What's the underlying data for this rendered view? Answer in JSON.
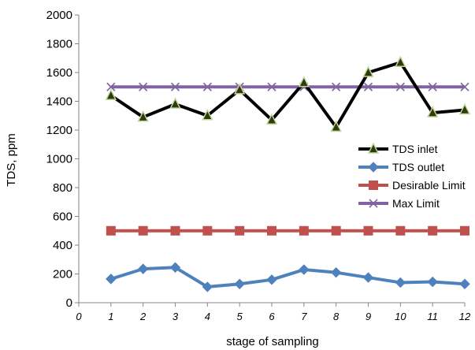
{
  "chart_data": {
    "type": "line",
    "xlabel": "stage of sampling",
    "ylabel": "TDS, ppm",
    "xlim": [
      0,
      12
    ],
    "ylim": [
      0,
      2000
    ],
    "x_ticks": [
      0,
      1,
      2,
      3,
      4,
      5,
      6,
      7,
      8,
      9,
      10,
      11,
      12
    ],
    "y_ticks": [
      0,
      200,
      400,
      600,
      800,
      1000,
      1200,
      1400,
      1600,
      1800,
      2000
    ],
    "grid": false,
    "legend_position": "right",
    "x": [
      1,
      2,
      3,
      4,
      5,
      6,
      7,
      8,
      9,
      10,
      11,
      12
    ],
    "series": [
      {
        "name": "TDS inlet",
        "color": "#000000",
        "marker": "triangle",
        "marker_fill": "#2e3b0f",
        "marker_stroke": "#c3d69b",
        "values": [
          1440,
          1290,
          1380,
          1300,
          1480,
          1270,
          1530,
          1220,
          1600,
          1670,
          1320,
          1340
        ]
      },
      {
        "name": "TDS outlet",
        "color": "#4f81bd",
        "marker": "diamond",
        "marker_fill": "#4f81bd",
        "marker_stroke": "#4f81bd",
        "values": [
          165,
          235,
          245,
          110,
          130,
          160,
          230,
          210,
          175,
          140,
          145,
          130
        ]
      },
      {
        "name": "Desirable Limit",
        "color": "#c0504d",
        "marker": "square",
        "marker_fill": "#c0504d",
        "marker_stroke": "#c0504d",
        "values": [
          500,
          500,
          500,
          500,
          500,
          500,
          500,
          500,
          500,
          500,
          500,
          500
        ]
      },
      {
        "name": "Max Limit",
        "color": "#8064a2",
        "marker": "x",
        "marker_fill": "none",
        "marker_stroke": "#8064a2",
        "values": [
          1500,
          1500,
          1500,
          1500,
          1500,
          1500,
          1500,
          1500,
          1500,
          1500,
          1500,
          1500
        ]
      }
    ]
  }
}
